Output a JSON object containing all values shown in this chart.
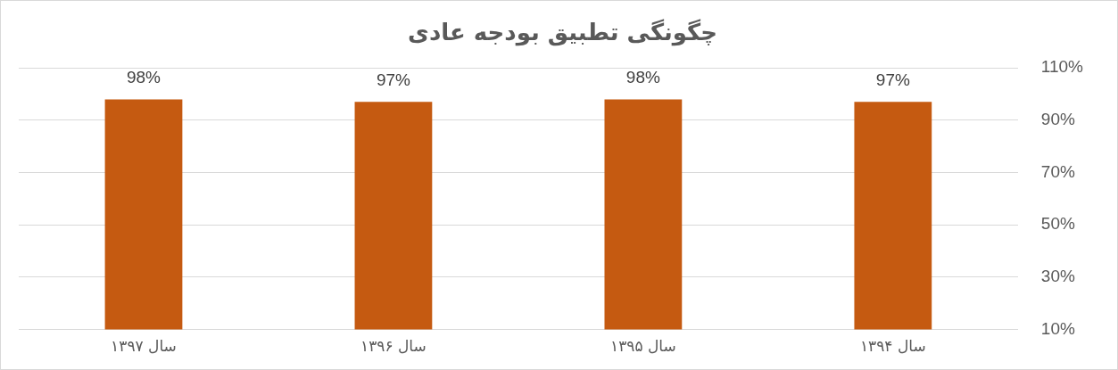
{
  "chart_data": {
    "type": "bar",
    "title": "چگونگی تطبیق بودجه عادی",
    "categories": [
      "سال ۱۳۹۷",
      "سال ۱۳۹۶",
      "سال ۱۳۹۵",
      "سال ۱۳۹۴"
    ],
    "values": [
      98,
      97,
      98,
      97
    ],
    "color": "#c55a11",
    "value_labels": [
      "98%",
      "97%",
      "98%",
      "97%"
    ],
    "ylim": [
      10,
      110
    ],
    "yticks": [
      {
        "value": 10,
        "label": "10%"
      },
      {
        "value": 30,
        "label": "30%"
      },
      {
        "value": 50,
        "label": "50%"
      },
      {
        "value": 70,
        "label": "70%"
      },
      {
        "value": 90,
        "label": "90%"
      },
      {
        "value": 110,
        "label": "110%"
      }
    ],
    "grid": "y",
    "legend": false
  }
}
